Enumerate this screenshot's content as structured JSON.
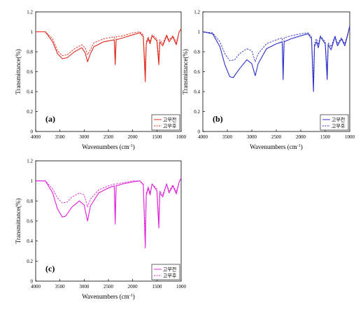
{
  "chart_data": [
    {
      "type": "line",
      "panel_label": "(a)",
      "xlabel": "Wavenumbers (cm",
      "xlabel_sup": "-1",
      "xlabel_end": ")",
      "ylabel": "Transmittance(%)",
      "xlim": [
        4000,
        1000
      ],
      "ylim": [
        0,
        1.2
      ],
      "x_ticks": [
        "4000",
        "3500",
        "3000",
        "2500",
        "2000",
        "1500",
        "1000"
      ],
      "y_ticks": [
        "0",
        "0.2",
        "0.4",
        "0.6",
        "0.8",
        "1",
        "1.2"
      ],
      "color": "#e0281c",
      "legend": "lower-right",
      "series": [
        {
          "name": "고무전",
          "dash": false,
          "points": [
            [
              4000,
              1.0
            ],
            [
              3800,
              1.0
            ],
            [
              3650,
              0.9
            ],
            [
              3550,
              0.78
            ],
            [
              3450,
              0.73
            ],
            [
              3350,
              0.74
            ],
            [
              3200,
              0.8
            ],
            [
              3050,
              0.84
            ],
            [
              2980,
              0.79
            ],
            [
              2930,
              0.7
            ],
            [
              2870,
              0.78
            ],
            [
              2800,
              0.85
            ],
            [
              2600,
              0.9
            ],
            [
              2380,
              0.92
            ],
            [
              2360,
              0.67
            ],
            [
              2340,
              0.92
            ],
            [
              2200,
              0.94
            ],
            [
              2000,
              0.97
            ],
            [
              1850,
              0.99
            ],
            [
              1780,
              0.95
            ],
            [
              1740,
              0.5
            ],
            [
              1720,
              0.88
            ],
            [
              1680,
              0.93
            ],
            [
              1640,
              0.88
            ],
            [
              1600,
              0.96
            ],
            [
              1500,
              0.91
            ],
            [
              1460,
              0.67
            ],
            [
              1440,
              0.9
            ],
            [
              1380,
              0.86
            ],
            [
              1300,
              0.96
            ],
            [
              1250,
              0.9
            ],
            [
              1170,
              0.95
            ],
            [
              1100,
              0.87
            ],
            [
              1040,
              1.0
            ],
            [
              1000,
              1.03
            ]
          ]
        },
        {
          "name": "고무후",
          "dash": true,
          "points": [
            [
              4000,
              1.0
            ],
            [
              3800,
              1.0
            ],
            [
              3650,
              0.93
            ],
            [
              3550,
              0.81
            ],
            [
              3450,
              0.76
            ],
            [
              3350,
              0.77
            ],
            [
              3200,
              0.83
            ],
            [
              3050,
              0.87
            ],
            [
              2980,
              0.84
            ],
            [
              2930,
              0.77
            ],
            [
              2870,
              0.82
            ],
            [
              2800,
              0.89
            ],
            [
              2600,
              0.93
            ],
            [
              2380,
              0.95
            ],
            [
              2360,
              0.75
            ],
            [
              2340,
              0.95
            ],
            [
              2200,
              0.96
            ],
            [
              2000,
              0.99
            ],
            [
              1850,
              1.0
            ],
            [
              1780,
              0.97
            ],
            [
              1740,
              0.62
            ],
            [
              1720,
              0.9
            ],
            [
              1680,
              0.95
            ],
            [
              1640,
              0.9
            ],
            [
              1600,
              0.97
            ],
            [
              1500,
              0.93
            ],
            [
              1460,
              0.72
            ],
            [
              1440,
              0.92
            ],
            [
              1380,
              0.88
            ],
            [
              1300,
              0.97
            ],
            [
              1250,
              0.92
            ],
            [
              1170,
              0.96
            ],
            [
              1100,
              0.89
            ],
            [
              1040,
              1.0
            ],
            [
              1000,
              1.03
            ]
          ]
        }
      ]
    },
    {
      "type": "line",
      "panel_label": "(b)",
      "xlabel": "Wavenumbers (cm",
      "xlabel_sup": "-1",
      "xlabel_end": ")",
      "ylabel": "Transmittance(%)",
      "xlim": [
        4000,
        1000
      ],
      "ylim": [
        0,
        1.2
      ],
      "x_ticks": [
        "4000",
        "3500",
        "3000",
        "2500",
        "2000",
        "1500",
        "1000"
      ],
      "y_ticks": [
        "0",
        "0.2",
        "0.4",
        "0.6",
        "0.8",
        "1",
        "1.2"
      ],
      "color": "#2b2fc8",
      "legend": "lower-right",
      "series": [
        {
          "name": "고무전",
          "dash": false,
          "points": [
            [
              4000,
              1.0
            ],
            [
              3800,
              0.98
            ],
            [
              3650,
              0.85
            ],
            [
              3550,
              0.67
            ],
            [
              3450,
              0.55
            ],
            [
              3380,
              0.54
            ],
            [
              3250,
              0.63
            ],
            [
              3100,
              0.72
            ],
            [
              3000,
              0.68
            ],
            [
              2930,
              0.56
            ],
            [
              2870,
              0.68
            ],
            [
              2700,
              0.83
            ],
            [
              2500,
              0.88
            ],
            [
              2380,
              0.9
            ],
            [
              2360,
              0.52
            ],
            [
              2340,
              0.9
            ],
            [
              2200,
              0.93
            ],
            [
              2000,
              0.96
            ],
            [
              1850,
              0.98
            ],
            [
              1780,
              0.93
            ],
            [
              1740,
              0.4
            ],
            [
              1720,
              0.85
            ],
            [
              1680,
              0.9
            ],
            [
              1640,
              0.84
            ],
            [
              1600,
              0.95
            ],
            [
              1500,
              0.88
            ],
            [
              1460,
              0.52
            ],
            [
              1440,
              0.87
            ],
            [
              1380,
              0.82
            ],
            [
              1300,
              0.95
            ],
            [
              1250,
              0.86
            ],
            [
              1170,
              0.93
            ],
            [
              1100,
              0.86
            ],
            [
              1040,
              0.97
            ],
            [
              1000,
              1.06
            ]
          ]
        },
        {
          "name": "고무후",
          "dash": true,
          "points": [
            [
              4000,
              1.0
            ],
            [
              3800,
              0.99
            ],
            [
              3650,
              0.9
            ],
            [
              3550,
              0.78
            ],
            [
              3450,
              0.71
            ],
            [
              3350,
              0.72
            ],
            [
              3250,
              0.78
            ],
            [
              3100,
              0.83
            ],
            [
              3000,
              0.81
            ],
            [
              2930,
              0.7
            ],
            [
              2870,
              0.78
            ],
            [
              2700,
              0.88
            ],
            [
              2500,
              0.92
            ],
            [
              2380,
              0.94
            ],
            [
              2360,
              0.62
            ],
            [
              2340,
              0.94
            ],
            [
              2200,
              0.96
            ],
            [
              2000,
              0.98
            ],
            [
              1850,
              0.99
            ],
            [
              1780,
              0.95
            ],
            [
              1740,
              0.5
            ],
            [
              1720,
              0.88
            ],
            [
              1680,
              0.93
            ],
            [
              1640,
              0.87
            ],
            [
              1600,
              0.96
            ],
            [
              1500,
              0.9
            ],
            [
              1460,
              0.6
            ],
            [
              1440,
              0.89
            ],
            [
              1380,
              0.85
            ],
            [
              1300,
              0.96
            ],
            [
              1250,
              0.88
            ],
            [
              1170,
              0.94
            ],
            [
              1100,
              0.88
            ],
            [
              1040,
              0.98
            ],
            [
              1000,
              1.06
            ]
          ]
        }
      ]
    },
    {
      "type": "line",
      "panel_label": "(c)",
      "xlabel": "Wavenumbers (cm",
      "xlabel_sup": "-1",
      "xlabel_end": ")",
      "ylabel": "Transmittance(%)",
      "xlim": [
        4000,
        1000
      ],
      "ylim": [
        0,
        1.2
      ],
      "x_ticks": [
        "4000",
        "3500",
        "3000",
        "2500",
        "2000",
        "1500",
        "1000"
      ],
      "y_ticks": [
        "0",
        "0.2",
        "0.4",
        "0.6",
        "0.8",
        "1",
        "1.2"
      ],
      "color": "#e020d8",
      "legend": "lower-right",
      "series": [
        {
          "name": "고무전",
          "dash": false,
          "points": [
            [
              4000,
              1.0
            ],
            [
              3800,
              1.0
            ],
            [
              3650,
              0.88
            ],
            [
              3550,
              0.72
            ],
            [
              3450,
              0.64
            ],
            [
              3380,
              0.65
            ],
            [
              3250,
              0.74
            ],
            [
              3100,
              0.8
            ],
            [
              3000,
              0.76
            ],
            [
              2930,
              0.6
            ],
            [
              2870,
              0.75
            ],
            [
              2700,
              0.88
            ],
            [
              2500,
              0.93
            ],
            [
              2380,
              0.95
            ],
            [
              2360,
              0.57
            ],
            [
              2340,
              0.95
            ],
            [
              2200,
              0.97
            ],
            [
              2000,
              0.99
            ],
            [
              1850,
              1.0
            ],
            [
              1780,
              0.96
            ],
            [
              1740,
              0.33
            ],
            [
              1720,
              0.86
            ],
            [
              1680,
              0.93
            ],
            [
              1640,
              0.86
            ],
            [
              1600,
              0.97
            ],
            [
              1500,
              0.9
            ],
            [
              1460,
              0.53
            ],
            [
              1440,
              0.88
            ],
            [
              1380,
              0.84
            ],
            [
              1300,
              0.97
            ],
            [
              1250,
              0.88
            ],
            [
              1170,
              0.95
            ],
            [
              1100,
              0.87
            ],
            [
              1040,
              0.99
            ],
            [
              1000,
              1.03
            ]
          ]
        },
        {
          "name": "고무후",
          "dash": true,
          "points": [
            [
              4000,
              1.0
            ],
            [
              3800,
              1.0
            ],
            [
              3650,
              0.92
            ],
            [
              3550,
              0.83
            ],
            [
              3450,
              0.78
            ],
            [
              3350,
              0.79
            ],
            [
              3250,
              0.84
            ],
            [
              3100,
              0.88
            ],
            [
              3000,
              0.86
            ],
            [
              2930,
              0.74
            ],
            [
              2870,
              0.82
            ],
            [
              2700,
              0.91
            ],
            [
              2500,
              0.95
            ],
            [
              2380,
              0.97
            ],
            [
              2360,
              0.67
            ],
            [
              2340,
              0.97
            ],
            [
              2200,
              0.98
            ],
            [
              2000,
              1.0
            ],
            [
              1850,
              1.0
            ],
            [
              1780,
              0.97
            ],
            [
              1740,
              0.45
            ],
            [
              1720,
              0.88
            ],
            [
              1680,
              0.94
            ],
            [
              1640,
              0.88
            ],
            [
              1600,
              0.97
            ],
            [
              1500,
              0.92
            ],
            [
              1460,
              0.6
            ],
            [
              1440,
              0.9
            ],
            [
              1380,
              0.86
            ],
            [
              1300,
              0.97
            ],
            [
              1250,
              0.9
            ],
            [
              1170,
              0.96
            ],
            [
              1100,
              0.89
            ],
            [
              1040,
              0.99
            ],
            [
              1000,
              1.03
            ]
          ]
        }
      ]
    }
  ]
}
